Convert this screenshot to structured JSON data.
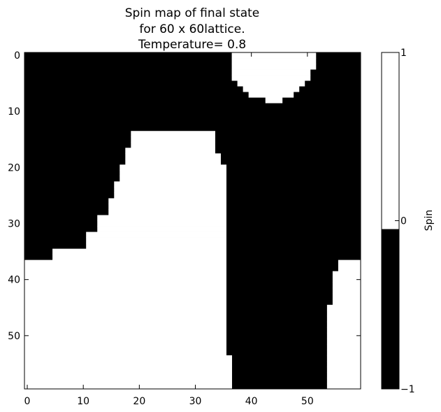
{
  "chart_data": {
    "type": "heatmap",
    "title": [
      "Spin map of final state",
      "for  60 x 60lattice.",
      "Temperature= 0.8"
    ],
    "xticks": [
      "0",
      "10",
      "20",
      "30",
      "40",
      "50"
    ],
    "yticks": [
      "0",
      "10",
      "20",
      "30",
      "40",
      "50"
    ],
    "colorbar": {
      "label": "Spin",
      "ticks": [
        "1",
        "0",
        "−1"
      ],
      "levels": [
        {
          "value": 1,
          "color": "#ffffff"
        },
        {
          "value": -1,
          "color": "#000000"
        }
      ],
      "split_value": -0.05
    },
    "grid": false,
    "lattice": {
      "rows": 60,
      "cols": 60,
      "white_runs": [
        [
          [
            37,
            51
          ]
        ],
        [
          [
            37,
            51
          ]
        ],
        [
          [
            37,
            51
          ]
        ],
        [
          [
            37,
            50
          ]
        ],
        [
          [
            37,
            50
          ]
        ],
        [
          [
            38,
            49
          ]
        ],
        [
          [
            39,
            48
          ]
        ],
        [
          [
            40,
            47
          ]
        ],
        [
          [
            43,
            45
          ]
        ],
        [],
        [],
        [],
        [],
        [],
        [
          [
            19,
            33
          ]
        ],
        [
          [
            19,
            33
          ]
        ],
        [
          [
            19,
            33
          ]
        ],
        [
          [
            18,
            33
          ]
        ],
        [
          [
            18,
            34
          ]
        ],
        [
          [
            18,
            34
          ]
        ],
        [
          [
            17,
            35
          ]
        ],
        [
          [
            17,
            35
          ]
        ],
        [
          [
            17,
            35
          ]
        ],
        [
          [
            16,
            35
          ]
        ],
        [
          [
            16,
            35
          ]
        ],
        [
          [
            16,
            35
          ]
        ],
        [
          [
            15,
            35
          ]
        ],
        [
          [
            15,
            35
          ]
        ],
        [
          [
            15,
            35
          ]
        ],
        [
          [
            13,
            35
          ]
        ],
        [
          [
            13,
            35
          ]
        ],
        [
          [
            13,
            35
          ]
        ],
        [
          [
            11,
            35
          ]
        ],
        [
          [
            11,
            35
          ]
        ],
        [
          [
            11,
            35
          ]
        ],
        [
          [
            5,
            35
          ]
        ],
        [
          [
            5,
            35
          ]
        ],
        [
          [
            0,
            35
          ],
          [
            56,
            59
          ]
        ],
        [
          [
            0,
            35
          ],
          [
            56,
            59
          ]
        ],
        [
          [
            0,
            35
          ],
          [
            55,
            59
          ]
        ],
        [
          [
            0,
            35
          ],
          [
            55,
            59
          ]
        ],
        [
          [
            0,
            35
          ],
          [
            55,
            59
          ]
        ],
        [
          [
            0,
            35
          ],
          [
            55,
            59
          ]
        ],
        [
          [
            0,
            35
          ],
          [
            55,
            59
          ]
        ],
        [
          [
            0,
            35
          ],
          [
            55,
            59
          ]
        ],
        [
          [
            0,
            35
          ],
          [
            54,
            59
          ]
        ],
        [
          [
            0,
            35
          ],
          [
            54,
            59
          ]
        ],
        [
          [
            0,
            35
          ],
          [
            54,
            59
          ]
        ],
        [
          [
            0,
            35
          ],
          [
            54,
            59
          ]
        ],
        [
          [
            0,
            35
          ],
          [
            54,
            59
          ]
        ],
        [
          [
            0,
            35
          ],
          [
            54,
            59
          ]
        ],
        [
          [
            0,
            35
          ],
          [
            54,
            59
          ]
        ],
        [
          [
            0,
            35
          ],
          [
            54,
            59
          ]
        ],
        [
          [
            0,
            35
          ],
          [
            54,
            59
          ]
        ],
        [
          [
            0,
            36
          ],
          [
            54,
            59
          ]
        ],
        [
          [
            0,
            36
          ],
          [
            54,
            59
          ]
        ],
        [
          [
            0,
            36
          ],
          [
            54,
            59
          ]
        ],
        [
          [
            0,
            36
          ],
          [
            54,
            59
          ]
        ],
        [
          [
            0,
            36
          ],
          [
            54,
            59
          ]
        ],
        [
          [
            0,
            36
          ],
          [
            54,
            59
          ]
        ],
        [
          [
            0,
            36
          ],
          [
            54,
            59
          ]
        ]
      ]
    }
  }
}
